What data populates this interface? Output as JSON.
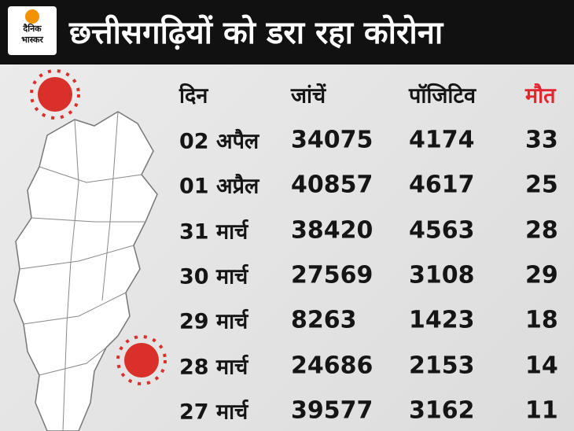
{
  "header": {
    "logo": [
      "दैनिक",
      "भास्कर"
    ],
    "title": "छत्तीसगढ़ियों को डरा रहा कोरोना"
  },
  "table": {
    "columns": [
      "दिन",
      "जांचें",
      "पॉजिटिव",
      "मौत"
    ],
    "rows": [
      [
        "02 अपैल",
        34075,
        4174,
        33
      ],
      [
        "01 अप्रैल",
        40857,
        4617,
        25
      ],
      [
        "31 मार्च",
        38420,
        4563,
        28
      ],
      [
        "30 मार्च",
        27569,
        3108,
        29
      ],
      [
        "29 मार्च",
        8263,
        1423,
        18
      ],
      [
        "28 मार्च",
        24686,
        2153,
        14
      ],
      [
        "27 मार्च",
        39577,
        3162,
        11
      ]
    ]
  }
}
